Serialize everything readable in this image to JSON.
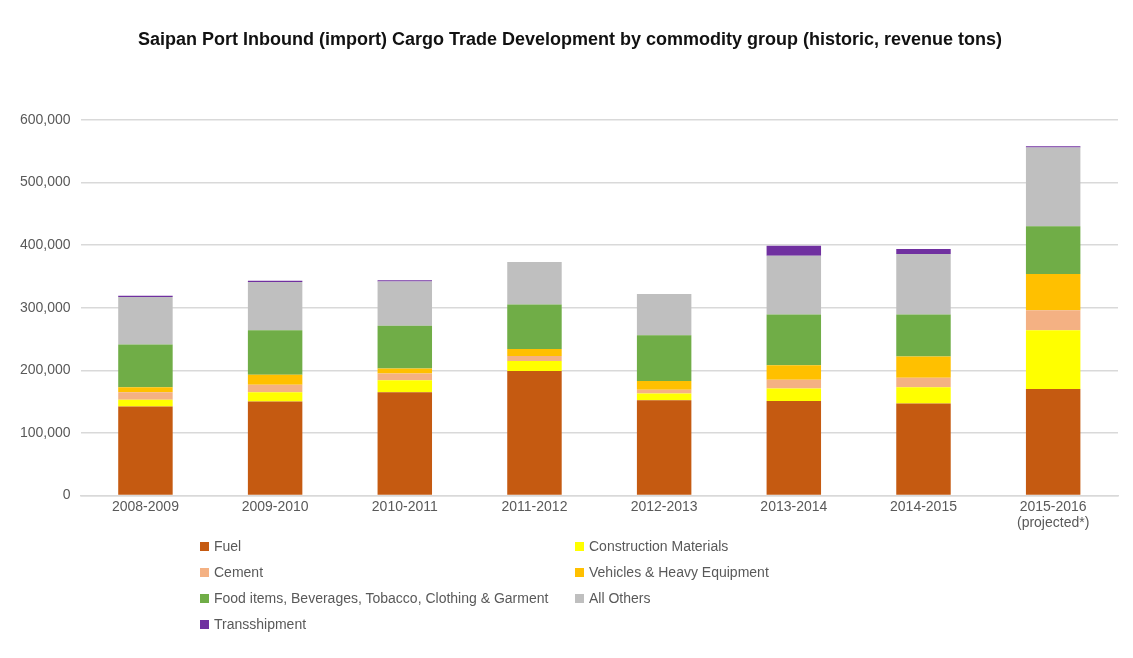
{
  "chart_data": {
    "type": "bar",
    "title": "Saipan Port Inbound (import) Cargo Trade Development by commodity group (historic, revenue tons)",
    "categories": [
      "2008-2009",
      "2009-2010",
      "2010-2011",
      "2011-2012",
      "2012-2013",
      "2013-2014",
      "2014-2015",
      "2015-2016 (projected*)"
    ],
    "stacked": true,
    "series": [
      {
        "name": "Fuel",
        "color": "#c55a11",
        "values": [
          142000,
          150000,
          165000,
          199000,
          152000,
          151000,
          147000,
          170000
        ]
      },
      {
        "name": "Construction Materials",
        "color": "#ffff00",
        "values": [
          11000,
          15000,
          19000,
          16000,
          11000,
          20000,
          26000,
          94000
        ]
      },
      {
        "name": "Cement",
        "color": "#f4b183",
        "values": [
          12000,
          12000,
          11000,
          8000,
          6000,
          14000,
          15000,
          32000
        ]
      },
      {
        "name": "Vehicles & Heavy Equipment",
        "color": "#ffc000",
        "values": [
          8000,
          16000,
          8000,
          11000,
          14000,
          23000,
          34000,
          58000
        ]
      },
      {
        "name": "Food items, Beverages, Tobacco, Clothing & Garment",
        "color": "#70ad47",
        "values": [
          68000,
          71000,
          68000,
          71000,
          73000,
          81000,
          67000,
          76000
        ]
      },
      {
        "name": "All Others",
        "color": "#bfbfbf",
        "values": [
          76000,
          77000,
          71000,
          68000,
          66000,
          94000,
          97000,
          126000
        ]
      },
      {
        "name": "Transshipment",
        "color": "#7030a0",
        "values": [
          2000,
          2000,
          2000,
          0,
          0,
          16000,
          8000,
          2000
        ]
      }
    ],
    "ylim": [
      0,
      600000
    ],
    "yticks": [
      0,
      {
        "value": 100000,
        "label": "100,000"
      },
      {
        "value": 200000,
        "label": "200,000"
      },
      {
        "value": 300000,
        "label": "300,000"
      },
      {
        "value": 400000,
        "label": "400,000"
      },
      {
        "value": 500000,
        "label": "500,000"
      },
      {
        "value": 600000,
        "label": "600,000"
      }
    ],
    "grid": "y",
    "legend": "bottom"
  }
}
